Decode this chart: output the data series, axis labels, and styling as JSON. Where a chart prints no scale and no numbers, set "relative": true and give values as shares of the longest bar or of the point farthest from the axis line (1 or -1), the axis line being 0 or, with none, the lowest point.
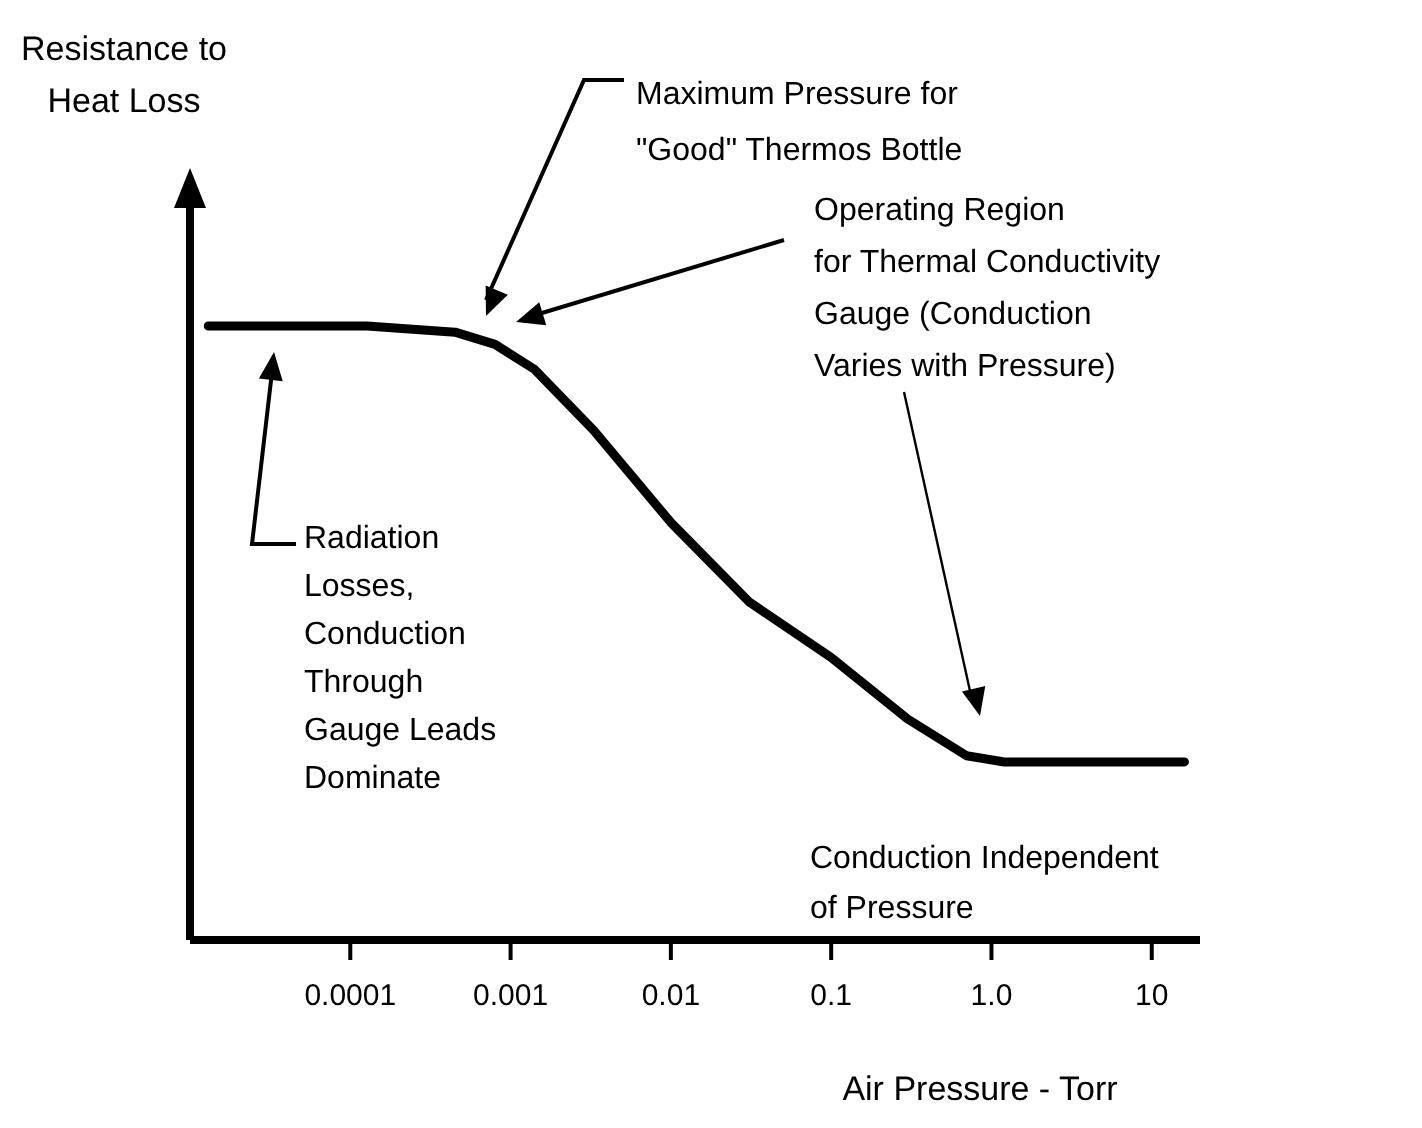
{
  "chart_data": {
    "type": "line",
    "relative": true,
    "log": "x",
    "xlabel": "Air Pressure - Torr",
    "xlim": [
      1e-05,
      20
    ],
    "xticks": [
      0.0001,
      0.001,
      0.01,
      0.1,
      {
        "value": 1,
        "label": "1.0"
      },
      10
    ],
    "x": [
      1.3e-05,
      0.000127,
      0.00045,
      0.0008,
      0.0014,
      0.0033,
      0.01,
      0.031,
      0.1,
      0.3,
      0.7,
      1.2,
      16
    ],
    "series": [
      {
        "color": "#000000",
        "values": [
          1.0,
          1.0,
          0.99,
          0.97,
          0.93,
          0.83,
          0.68,
          0.55,
          0.46,
          0.36,
          0.3,
          0.29,
          0.29
        ]
      }
    ],
    "annotations": [
      "Maximum Pressure for\n\"Good\" Thermos Bottle",
      "Operating Region\nfor Thermal Conductivity\nGauge (Conduction\nVaries with Pressure)",
      "Radiation\nLosses,\nConduction\nThrough\nGauge Leads\nDominate",
      "Conduction Independent\nof Pressure",
      "Resistance to\nHeat Loss"
    ]
  }
}
